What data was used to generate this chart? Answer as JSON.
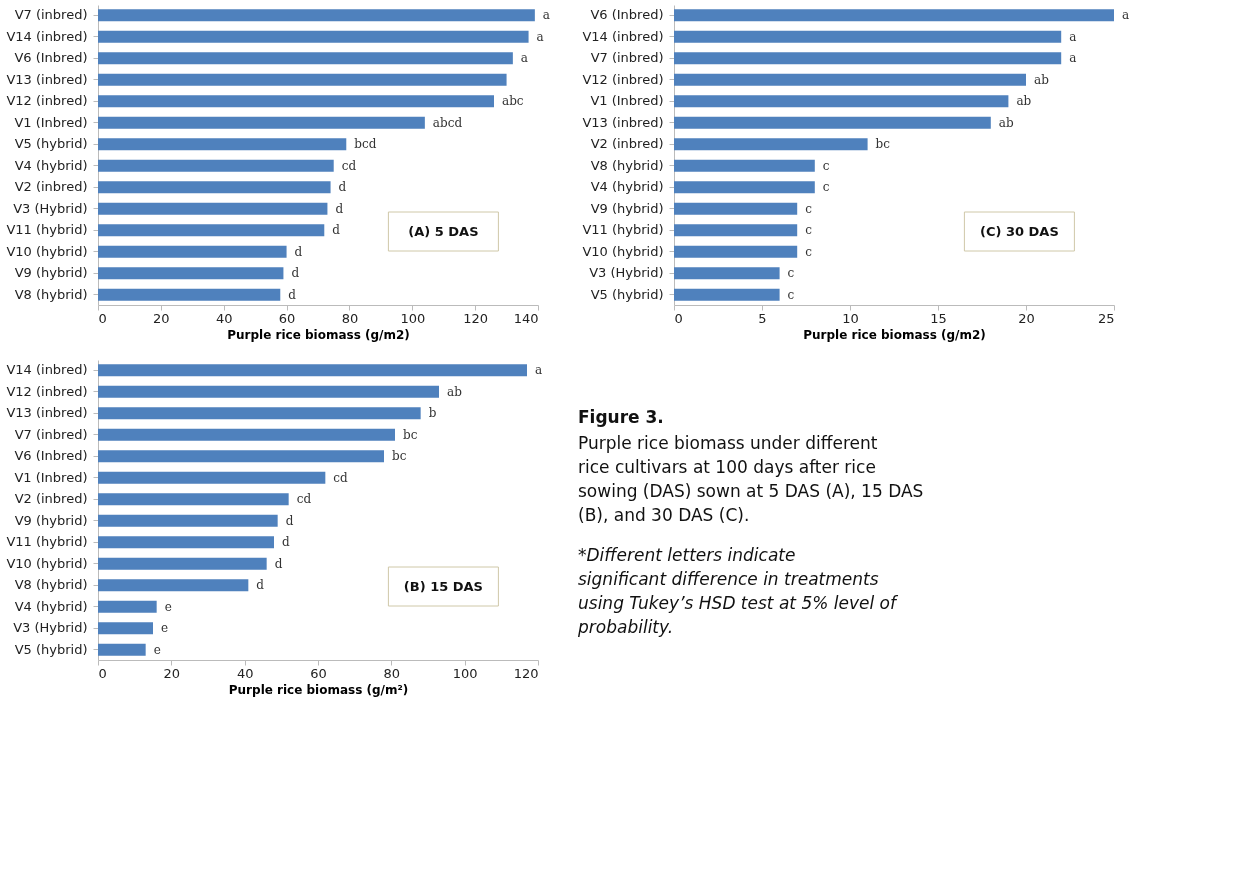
{
  "chart_data": [
    {
      "type": "bar",
      "orientation": "horizontal",
      "color": "#4f81bd",
      "grid": false,
      "xlabel": "Purple rice biomass (g/m2)",
      "xlim": [
        0,
        140
      ],
      "xticks": [
        0,
        20,
        40,
        60,
        80,
        100,
        120,
        140
      ],
      "categories": [
        "V7 (inbred)",
        "V14 (inbred)",
        "V6 (Inbred)",
        "V13 (inbred)",
        "V12 (inbred)",
        "V1 (Inbred)",
        "V5 (hybrid)",
        "V4 (hybrid)",
        "V2 (inbred)",
        "V3 (Hybrid)",
        "V11 (hybrid)",
        "V10 (hybrid)",
        "V9 (hybrid)",
        "V8 (hybrid)"
      ],
      "values": [
        139,
        137,
        132,
        130,
        126,
        104,
        79,
        75,
        74,
        73,
        72,
        60,
        59,
        58
      ],
      "value_labels": [
        "a",
        "a",
        "a",
        null,
        "abc",
        "abcd",
        "bcd",
        "cd",
        "d",
        "d",
        "d",
        "d",
        "d",
        "d"
      ],
      "annotations": [
        "(A) 5 DAS"
      ]
    },
    {
      "type": "bar",
      "orientation": "horizontal",
      "color": "#4f81bd",
      "grid": false,
      "xlabel": "Purple rice biomass (g/m2)",
      "xlim": [
        0,
        25
      ],
      "xticks": [
        0,
        5,
        10,
        15,
        20,
        25
      ],
      "categories": [
        "V6 (Inbred)",
        "V14 (inbred)",
        "V7 (inbred)",
        "V12 (inbred)",
        "V1 (Inbred)",
        "V13 (inbred)",
        "V2 (inbred)",
        "V8 (hybrid)",
        "V4 (hybrid)",
        "V9 (hybrid)",
        "V11 (hybrid)",
        "V10 (hybrid)",
        "V3 (Hybrid)",
        "V5 (hybrid)"
      ],
      "values": [
        25,
        22,
        22,
        20,
        19,
        18,
        11,
        8,
        8,
        7,
        7,
        7,
        6,
        6
      ],
      "value_labels": [
        "a",
        "a",
        "a",
        "ab",
        "ab",
        "ab",
        "bc",
        "c",
        "c",
        "c",
        "c",
        "c",
        "c",
        "c"
      ],
      "annotations": [
        "(C) 30 DAS"
      ]
    },
    {
      "type": "bar",
      "orientation": "horizontal",
      "color": "#4f81bd",
      "grid": false,
      "xlabel": "Purple rice biomass (g/m²)",
      "xlim": [
        0,
        120
      ],
      "xticks": [
        0,
        20,
        40,
        60,
        80,
        100,
        120
      ],
      "categories": [
        "V14 (inbred)",
        "V12 (inbred)",
        "V13 (inbred)",
        "V7 (inbred)",
        "V6 (Inbred)",
        "V1 (Inbred)",
        "V2 (inbred)",
        "V9 (hybrid)",
        "V11 (hybrid)",
        "V10 (hybrid)",
        "V8 (hybrid)",
        "V4 (hybrid)",
        "V3 (Hybrid)",
        "V5 (hybrid)"
      ],
      "values": [
        117,
        93,
        88,
        81,
        78,
        62,
        52,
        49,
        48,
        46,
        41,
        16,
        15,
        13
      ],
      "value_labels": [
        "a",
        "ab",
        "b",
        "bc",
        "bc",
        "cd",
        "cd",
        "d",
        "d",
        "d",
        "d",
        "e",
        "e",
        "e"
      ],
      "annotations": [
        "(B) 15 DAS"
      ]
    },
    {
      "type": "other",
      "annotations": [
        "Figure 3.",
        "Purple rice biomass under different rice cultivars at 100 days after rice sowing (DAS) sown at 5 DAS (A), 15 DAS (B), and 30 DAS (C).",
        "*Different letters indicate significant difference in treatments using Tukey’s HSD test at 5% level of probability."
      ]
    }
  ]
}
